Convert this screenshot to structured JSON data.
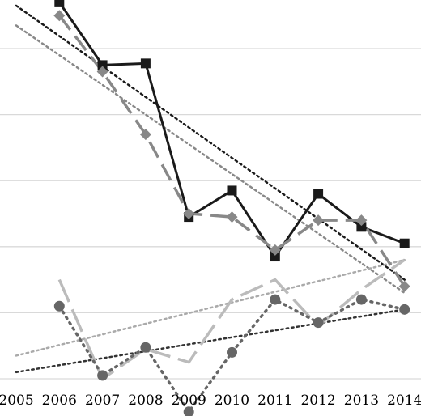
{
  "chart_data": {
    "type": "line",
    "title": "",
    "xlabel": "",
    "ylabel": "",
    "categories": [
      "2005",
      "2006",
      "2007",
      "2008",
      "2009",
      "2010",
      "2011",
      "2012",
      "2013",
      "2014"
    ],
    "ylim": [
      0,
      11.5
    ],
    "grid": true,
    "legend": "none",
    "series": [
      {
        "style": "solid-square",
        "color": "#1a1a1a",
        "values": [
          null,
          11.4,
          9.5,
          9.55,
          4.9,
          5.7,
          3.7,
          5.6,
          4.6,
          4.1
        ]
      },
      {
        "style": "dashed-diamond",
        "color": "#888888",
        "values": [
          null,
          11.0,
          9.3,
          7.4,
          5.0,
          4.9,
          3.9,
          4.8,
          4.8,
          2.8
        ]
      },
      {
        "style": "dashed-light",
        "color": "#bbbbbb",
        "values": [
          null,
          3.0,
          0.0,
          0.9,
          0.5,
          2.4,
          3.0,
          1.6,
          2.7,
          3.6
        ]
      },
      {
        "style": "dotted-circle",
        "color": "#666666",
        "values": [
          null,
          2.2,
          0.1,
          0.95,
          -1.0,
          0.8,
          2.4,
          1.7,
          2.4,
          2.1
        ]
      }
    ],
    "trendlines": [
      {
        "style": "dotted",
        "color": "#1a1a1a",
        "from": [
          2005,
          11.3
        ],
        "to": [
          2014,
          3.0
        ]
      },
      {
        "style": "dotted",
        "color": "#888888",
        "from": [
          2005,
          10.7
        ],
        "to": [
          2014,
          2.6
        ]
      },
      {
        "style": "dotted",
        "color": "#aaaaaa",
        "from": [
          2005,
          0.7
        ],
        "to": [
          2014,
          3.6
        ]
      },
      {
        "style": "dotted",
        "color": "#333333",
        "from": [
          2005,
          0.2
        ],
        "to": [
          2014,
          2.1
        ]
      }
    ]
  }
}
